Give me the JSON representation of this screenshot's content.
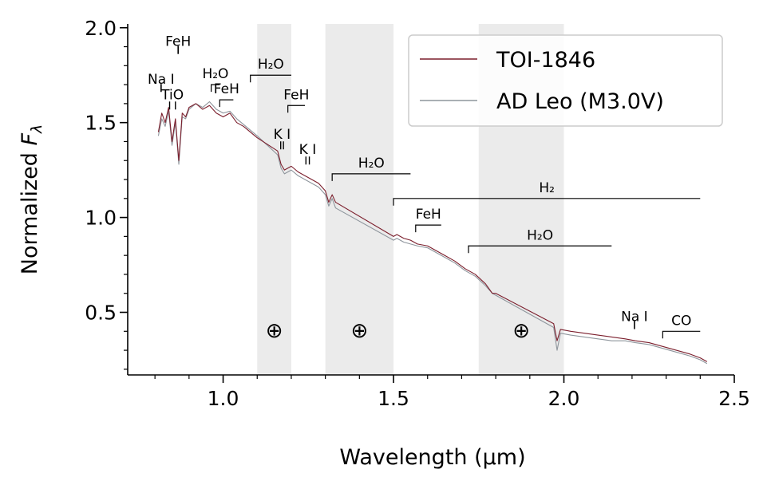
{
  "chart_data": {
    "type": "line",
    "xlabel": "Wavelength (μm)",
    "ylabel": "Normalized Fλ",
    "xlim": [
      0.72,
      2.5
    ],
    "ylim": [
      0.17,
      2.02
    ],
    "xticks": [
      {
        "value": 1.0,
        "label": "1.0"
      },
      1.5,
      {
        "value": 2.0,
        "label": "2.0"
      },
      2.5
    ],
    "yticks": [
      0.5,
      {
        "value": 1.0,
        "label": "1.0"
      },
      1.5,
      {
        "value": 2.0,
        "label": "2.0"
      }
    ],
    "xminorticks": [
      0.8,
      0.9,
      1.1,
      1.2,
      1.3,
      1.4,
      1.6,
      1.7,
      1.8,
      1.9,
      2.1,
      2.2,
      2.3,
      2.4
    ],
    "yminorticks": [
      0.2,
      0.3,
      0.4,
      0.6,
      0.7,
      0.8,
      0.9,
      1.1,
      1.2,
      1.3,
      1.4,
      1.6,
      1.7,
      1.8,
      1.9
    ],
    "legend": "upper right",
    "x": [
      0.81,
      0.82,
      0.83,
      0.84,
      0.85,
      0.86,
      0.87,
      0.88,
      0.89,
      0.9,
      0.92,
      0.94,
      0.96,
      0.98,
      1.0,
      1.02,
      1.04,
      1.06,
      1.08,
      1.1,
      1.16,
      1.17,
      1.18,
      1.2,
      1.22,
      1.24,
      1.26,
      1.28,
      1.3,
      1.31,
      1.32,
      1.33,
      1.5,
      1.51,
      1.53,
      1.55,
      1.57,
      1.6,
      1.63,
      1.65,
      1.68,
      1.71,
      1.74,
      1.77,
      1.79,
      1.8,
      1.97,
      1.98,
      1.99,
      2.02,
      2.06,
      2.1,
      2.14,
      2.18,
      2.21,
      2.25,
      2.29,
      2.33,
      2.37,
      2.4,
      2.42
    ],
    "series": [
      {
        "name": "TOI-1846",
        "color": "#7b1e2c",
        "values": [
          1.45,
          1.55,
          1.5,
          1.58,
          1.4,
          1.52,
          1.3,
          1.55,
          1.53,
          1.58,
          1.6,
          1.57,
          1.59,
          1.55,
          1.53,
          1.55,
          1.5,
          1.48,
          1.45,
          1.42,
          1.35,
          1.28,
          1.25,
          1.27,
          1.24,
          1.22,
          1.2,
          1.18,
          1.14,
          1.08,
          1.12,
          1.08,
          0.9,
          0.91,
          0.89,
          0.88,
          0.86,
          0.85,
          0.82,
          0.8,
          0.77,
          0.73,
          0.7,
          0.65,
          0.6,
          0.6,
          0.44,
          0.35,
          0.41,
          0.4,
          0.39,
          0.38,
          0.37,
          0.36,
          0.35,
          0.34,
          0.32,
          0.3,
          0.28,
          0.26,
          0.24
        ]
      },
      {
        "name": "AD Leo (M3.0V)",
        "color": "#8e959c",
        "values": [
          1.43,
          1.52,
          1.48,
          1.56,
          1.38,
          1.5,
          1.28,
          1.53,
          1.52,
          1.57,
          1.6,
          1.58,
          1.61,
          1.57,
          1.55,
          1.56,
          1.52,
          1.49,
          1.46,
          1.43,
          1.33,
          1.26,
          1.23,
          1.25,
          1.22,
          1.2,
          1.18,
          1.16,
          1.12,
          1.06,
          1.1,
          1.05,
          0.88,
          0.89,
          0.87,
          0.86,
          0.85,
          0.84,
          0.81,
          0.79,
          0.76,
          0.72,
          0.69,
          0.64,
          0.6,
          0.59,
          0.42,
          0.3,
          0.39,
          0.38,
          0.37,
          0.36,
          0.35,
          0.35,
          0.34,
          0.33,
          0.31,
          0.29,
          0.27,
          0.25,
          0.23
        ]
      }
    ],
    "telluric_bands": [
      {
        "range": [
          1.1,
          1.2
        ],
        "label": "⊕",
        "label_x": 1.15,
        "label_y": 0.4
      },
      {
        "range": [
          1.3,
          1.5
        ],
        "label": "⊕",
        "label_x": 1.4,
        "label_y": 0.4
      },
      {
        "range": [
          1.75,
          2.0
        ],
        "label": "⊕",
        "label_x": 1.875,
        "label_y": 0.4
      }
    ],
    "annotations": [
      {
        "label": "FeH",
        "x": [
          0.868,
          0.868
        ],
        "y": 1.87
      },
      {
        "label": "Na I",
        "x": [
          0.818,
          0.818
        ],
        "y": 1.67
      },
      {
        "label": "H₂O",
        "x": [
          0.965,
          0.99
        ],
        "y": 1.7
      },
      {
        "label": "TiO",
        "x": [
          0.843,
          0.86
        ],
        "y": 1.59
      },
      {
        "label": "FeH",
        "x": [
          0.99,
          1.03
        ],
        "y": 1.62
      },
      {
        "label": "H₂O",
        "x": [
          1.08,
          1.2
        ],
        "y": 1.75
      },
      {
        "label": "FeH",
        "x": [
          1.19,
          1.24
        ],
        "y": 1.59
      },
      {
        "label": "K I",
        "x": [
          1.169,
          1.177
        ],
        "y": 1.38
      },
      {
        "label": "K I",
        "x": [
          1.243,
          1.253
        ],
        "y": 1.3
      },
      {
        "label": "H₂O",
        "x": [
          1.32,
          1.55
        ],
        "y": 1.23
      },
      {
        "label": "H₂",
        "x": [
          1.5,
          2.4
        ],
        "y": 1.1
      },
      {
        "label": "FeH",
        "x": [
          1.565,
          1.64
        ],
        "y": 0.96
      },
      {
        "label": "H₂O",
        "x": [
          1.72,
          2.14
        ],
        "y": 0.85
      },
      {
        "label": "Na I",
        "x": [
          2.207,
          2.207
        ],
        "y": 0.42
      },
      {
        "label": "CO",
        "x": [
          2.29,
          2.4
        ],
        "y": 0.4
      }
    ]
  }
}
